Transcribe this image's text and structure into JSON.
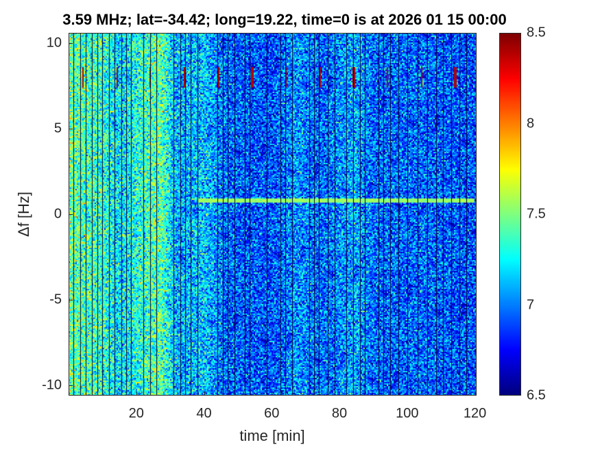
{
  "chart_data": {
    "type": "heatmap",
    "title": "3.59 MHz;  lat=-34.42; long=19.22, time=0 is at 2026 01 15 00:00",
    "xlabel": "time [min]",
    "ylabel": "Δf [Hz]",
    "xlim": [
      0,
      120.5
    ],
    "ylim": [
      -10.6,
      10.6
    ],
    "xticks": [
      20,
      40,
      60,
      80,
      100,
      120
    ],
    "xtick_labels": [
      "20",
      "40",
      "60",
      "80",
      "100",
      "120"
    ],
    "yticks": [
      10,
      5,
      0,
      -5,
      -10
    ],
    "ytick_labels": [
      "10",
      "5",
      "0",
      "-5",
      "-10"
    ],
    "colorbar": {
      "colormap": "jet",
      "clim": [
        6.5,
        8.5
      ],
      "ticks": [
        8.5,
        8,
        7.5,
        7,
        6.5
      ],
      "tick_labels": [
        "8.5",
        "8",
        "7.5",
        "7",
        "6.5"
      ]
    },
    "mean_level_by_time": [
      {
        "t": 0,
        "v": 7.45
      },
      {
        "t": 10,
        "v": 7.35
      },
      {
        "t": 15,
        "v": 7.2
      },
      {
        "t": 20,
        "v": 7.3
      },
      {
        "t": 27,
        "v": 7.45
      },
      {
        "t": 32,
        "v": 7.1
      },
      {
        "t": 40,
        "v": 7.15
      },
      {
        "t": 47,
        "v": 6.95
      },
      {
        "t": 60,
        "v": 6.9
      },
      {
        "t": 67,
        "v": 7.05
      },
      {
        "t": 75,
        "v": 6.95
      },
      {
        "t": 85,
        "v": 7.1
      },
      {
        "t": 90,
        "v": 6.95
      },
      {
        "t": 105,
        "v": 6.95
      },
      {
        "t": 120,
        "v": 6.9
      }
    ],
    "gap_times": [
      1.5,
      3.5,
      5,
      6.8,
      8.5,
      10,
      12,
      13.5,
      15.5,
      17,
      18.5,
      22,
      24,
      26,
      31,
      33,
      34.5,
      36,
      38,
      44,
      45.5,
      47,
      49,
      52,
      53.5,
      58.5,
      62.5,
      64,
      66,
      71,
      72.5,
      74,
      76.5,
      78.5,
      82,
      84,
      86,
      87.5,
      91.5,
      93,
      95,
      97.5,
      100,
      103,
      106,
      108.5,
      110.5,
      113,
      115.5,
      117.5
    ],
    "carrier_line": {
      "df": 0.8,
      "t_start": 38,
      "t_end": 120,
      "v": 7.55
    },
    "periodic_marks": {
      "df": 8.0,
      "period_min": 10,
      "t_start": 4,
      "v": 8.4
    }
  }
}
